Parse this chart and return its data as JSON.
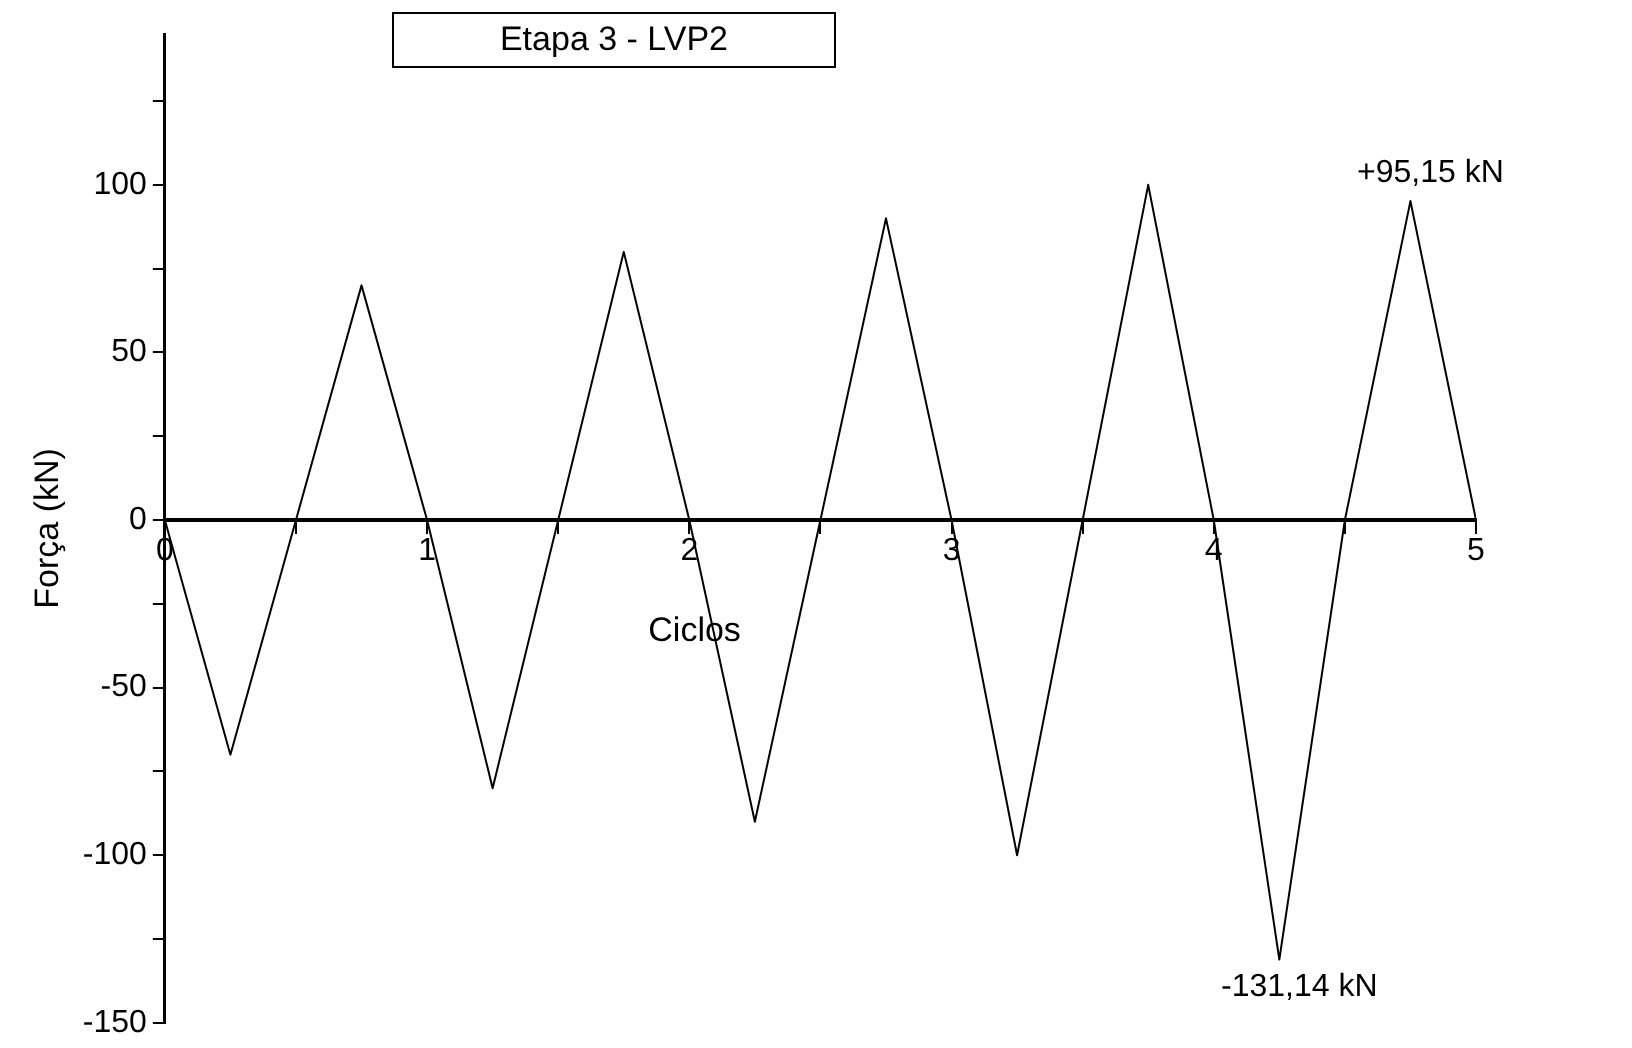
{
  "chart_data": {
    "type": "line",
    "title": "Etapa 3 - LVP2",
    "xlabel": "Ciclos",
    "ylabel": "Força (kN)",
    "x": [
      0,
      0.25,
      0.5,
      0.75,
      1,
      1.25,
      1.5,
      1.75,
      2,
      2.25,
      2.5,
      2.75,
      3,
      3.25,
      3.5,
      3.75,
      4,
      4.25,
      4.5,
      4.75,
      5
    ],
    "series": [
      {
        "color": "#000000",
        "values": [
          0,
          -70,
          0,
          70,
          0,
          -80,
          0,
          80,
          0,
          -90,
          0,
          90,
          0,
          -100,
          0,
          100,
          0,
          -131.14,
          0,
          95.15,
          0
        ]
      }
    ],
    "xlim": [
      0,
      5
    ],
    "xticks": [
      0,
      {
        "value": 0.5,
        "label": null
      },
      1,
      {
        "value": 1.5,
        "label": null
      },
      2,
      {
        "value": 2.5,
        "label": null
      },
      3,
      {
        "value": 3.5,
        "label": null
      },
      4,
      {
        "value": 4.5,
        "label": null
      },
      5
    ],
    "ylim": [
      -150,
      145
    ],
    "yticks": [
      -150,
      {
        "value": -125,
        "label": null
      },
      -100,
      {
        "value": -75,
        "label": null
      },
      -50,
      {
        "value": -25,
        "label": null
      },
      0,
      {
        "value": 25,
        "label": null
      },
      50,
      {
        "value": 75,
        "label": null
      },
      100,
      {
        "value": 125,
        "label": null
      }
    ],
    "annotations": [
      {
        "text": "+95,15 kN",
        "x": 4.75,
        "y": 95.15
      },
      {
        "text": "-131,14 kN",
        "x": 4.25,
        "y": -131.14
      }
    ],
    "grid": false,
    "legend": false,
    "marker": "none",
    "line_style": "solid"
  }
}
